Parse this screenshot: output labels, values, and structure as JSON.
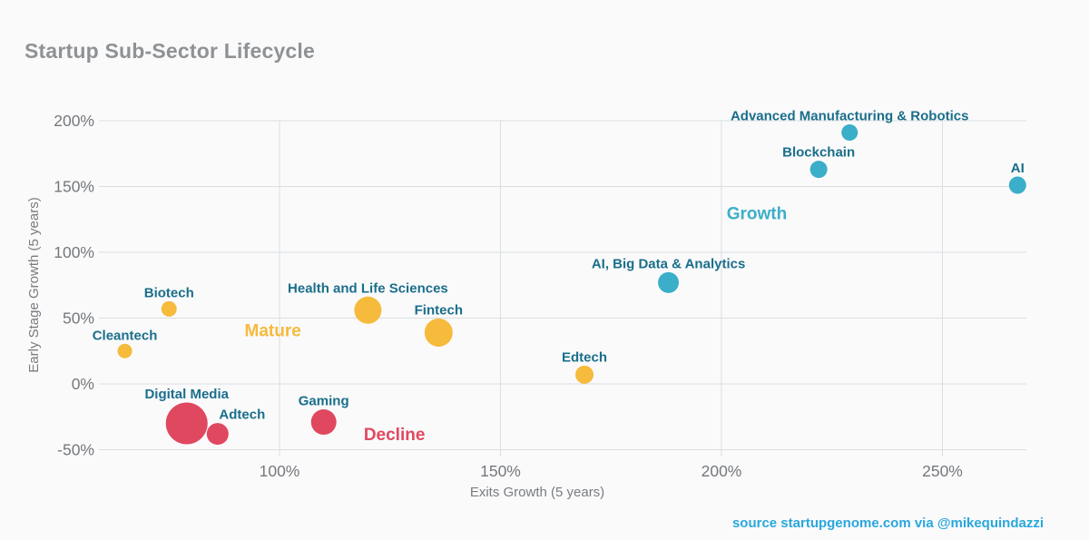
{
  "header": {
    "title": "Startup Sub-Sector Lifecycle"
  },
  "footer": {
    "source": "source startupgenome.com via @mikequindazzi",
    "color": "#2aa7dc"
  },
  "chart_data": {
    "type": "scatter",
    "title": "Startup Sub-Sector Lifecycle",
    "xlabel": "Exits Growth (5 years)",
    "ylabel": "Early Stage Growth (5 years)",
    "x_ticks": [
      100,
      150,
      200,
      250
    ],
    "y_ticks": [
      200,
      150,
      100,
      50,
      0,
      -50
    ],
    "tick_suffix": "%",
    "xlim": [
      59,
      269
    ],
    "ylim": [
      -55,
      212
    ],
    "grid": true,
    "legend_position": "none",
    "label_color": "#1a6e8a",
    "series": [
      {
        "name": "Growth",
        "color": "#3baec9",
        "zone_label": {
          "text": "Growth",
          "x": 208,
          "y": 130
        },
        "points": [
          {
            "label": "Advanced Manufacturing & Robotics",
            "x": 229,
            "y": 191,
            "r": 9
          },
          {
            "label": "Blockchain",
            "x": 222,
            "y": 163,
            "r": 9.5
          },
          {
            "label": "AI",
            "x": 267,
            "y": 151,
            "r": 9.5
          },
          {
            "label": "AI, Big Data & Analytics",
            "x": 188,
            "y": 77,
            "r": 11.5
          }
        ]
      },
      {
        "name": "Mature",
        "color": "#f6ba3c",
        "zone_label": {
          "text": "Mature",
          "x": 98.5,
          "y": 41
        },
        "points": [
          {
            "label": "Biotech",
            "x": 75,
            "y": 57,
            "r": 8.5
          },
          {
            "label": "Cleantech",
            "x": 65,
            "y": 25,
            "r": 8
          },
          {
            "label": "Health and Life Sciences",
            "x": 120,
            "y": 56,
            "r": 15
          },
          {
            "label": "Fintech",
            "x": 136,
            "y": 39,
            "r": 15.5
          },
          {
            "label": "Edtech",
            "x": 169,
            "y": 7,
            "r": 10
          }
        ]
      },
      {
        "name": "Decline",
        "color": "#e0485f",
        "zone_label": {
          "text": "Decline",
          "x": 126,
          "y": -38
        },
        "points": [
          {
            "label": "Digital Media",
            "x": 79,
            "y": -30,
            "r": 23
          },
          {
            "label": "Adtech",
            "x": 86,
            "y": -38,
            "r": 12,
            "label_dx": 27
          },
          {
            "label": "Gaming",
            "x": 110,
            "y": -29,
            "r": 14
          }
        ]
      }
    ]
  }
}
